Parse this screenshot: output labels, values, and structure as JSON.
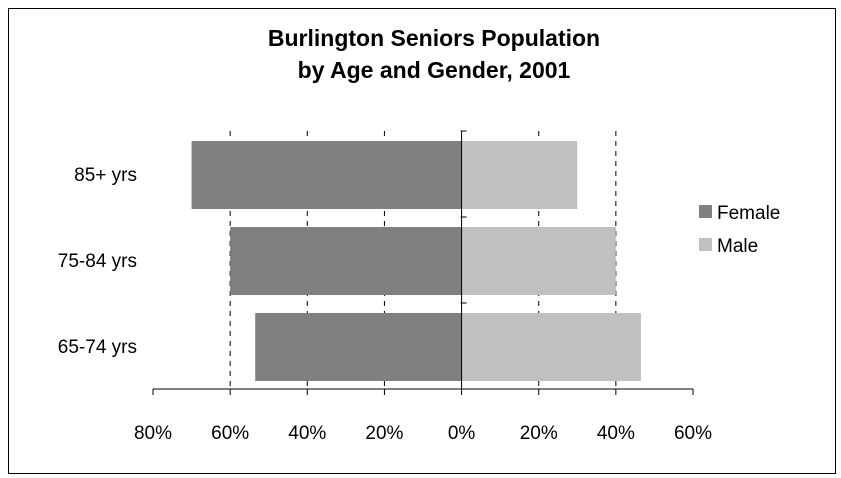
{
  "chart_data": {
    "type": "bar",
    "orientation": "horizontal",
    "title": "Burlington Seniors Population by Age and Gender, 2001",
    "title_lines": [
      "Burlington Seniors Population",
      "by Age and Gender, 2001"
    ],
    "categories": [
      "85+ yrs",
      "75-84 yrs",
      "65-74 yrs"
    ],
    "series": [
      {
        "name": "Female",
        "color": "#808080",
        "values": [
          -70,
          -60,
          -53.5
        ]
      },
      {
        "name": "Male",
        "color": "#c0c0c0",
        "values": [
          30,
          40,
          46.5
        ]
      }
    ],
    "x_ticks": [
      -80,
      -60,
      -40,
      -20,
      0,
      20,
      40,
      60
    ],
    "x_tick_labels": [
      "80%",
      "60%",
      "40%",
      "20%",
      "0%",
      "20%",
      "40%",
      "60%"
    ],
    "xlim": [
      -80,
      60
    ],
    "grid": "vertical dashed",
    "legend_position": "right",
    "xlabel": "",
    "ylabel": ""
  }
}
